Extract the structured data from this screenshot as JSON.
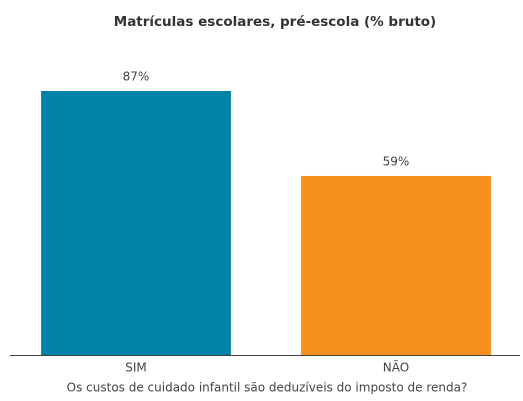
{
  "chart_data": {
    "type": "bar",
    "title": "Matrículas escolares, pré-escola (% bruto)",
    "categories": [
      "SIM",
      "NÃO"
    ],
    "values": [
      87,
      59
    ],
    "value_labels": [
      "87%",
      "59%"
    ],
    "colors": [
      "#0083a8",
      "#f7901e"
    ],
    "xlabel": "Os custos de cuidado infantil são deduzíveis do imposto de renda?"
  }
}
